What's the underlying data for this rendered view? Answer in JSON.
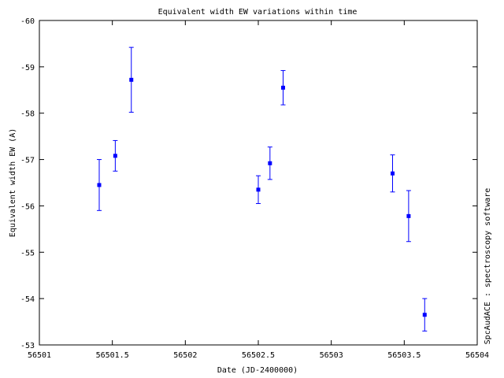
{
  "chart_data": {
    "type": "scatter",
    "title": "Equivalent width EW variations within time",
    "xlabel": "Date (JD-2400000)",
    "ylabel": "Equivalent width EW (A)",
    "side_label": "SpcAudACE : spectroscopy software",
    "xlim": [
      56501,
      56504
    ],
    "ylim": [
      -60,
      -53
    ],
    "y_reversed": true,
    "x_ticks": [
      56501,
      56501.5,
      56502,
      56502.5,
      56503,
      56503.5,
      56504
    ],
    "x_tick_labels": [
      "56501",
      "56501.5",
      "56502",
      "56502.5",
      "56503",
      "56503.5",
      "56504"
    ],
    "y_ticks": [
      -60,
      -59,
      -58,
      -57,
      -56,
      -55,
      -54,
      -53
    ],
    "y_tick_labels": [
      "-60",
      "-59",
      "-58",
      "-57",
      "-56",
      "-55",
      "-54",
      "-53"
    ],
    "grid": false,
    "marker_color": "#0000ff",
    "series": [
      {
        "points": [
          {
            "x": 56501.41,
            "y": -56.45,
            "err": 0.55
          },
          {
            "x": 56501.52,
            "y": -57.08,
            "err": 0.33
          },
          {
            "x": 56501.63,
            "y": -58.72,
            "err": 0.7
          },
          {
            "x": 56502.5,
            "y": -56.35,
            "err": 0.3
          },
          {
            "x": 56502.58,
            "y": -56.92,
            "err": 0.35
          },
          {
            "x": 56502.67,
            "y": -58.55,
            "err": 0.37
          },
          {
            "x": 56503.42,
            "y": -56.7,
            "err": 0.4
          },
          {
            "x": 56503.53,
            "y": -55.78,
            "err": 0.55
          },
          {
            "x": 56503.64,
            "y": -53.65,
            "err": 0.35
          }
        ]
      }
    ]
  }
}
